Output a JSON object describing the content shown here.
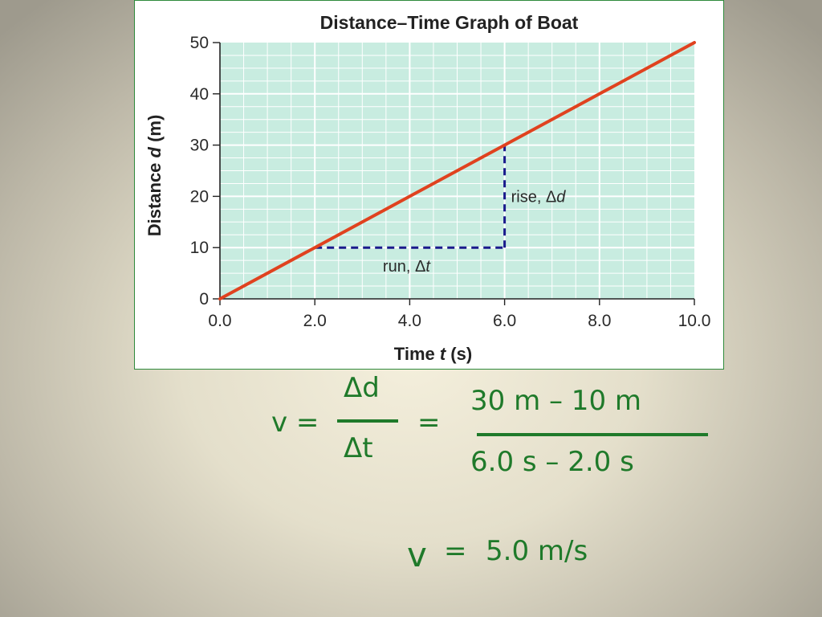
{
  "chart_data": {
    "type": "line",
    "title": "Distance–Time Graph of Boat",
    "xlabel": {
      "prefix": "Time ",
      "var": "t",
      "suffix": " (s)"
    },
    "ylabel": {
      "prefix": "Distance ",
      "var": "d",
      "suffix": " (m)"
    },
    "xlim": [
      0,
      10
    ],
    "ylim": [
      0,
      50
    ],
    "xticks": [
      0,
      2,
      4,
      6,
      8,
      10
    ],
    "xtick_labels": [
      "0.0",
      "2.0",
      "4.0",
      "6.0",
      "8.0",
      "10.0"
    ],
    "yticks": [
      0,
      10,
      20,
      30,
      40,
      50
    ],
    "ytick_labels": [
      "0",
      "10",
      "20",
      "30",
      "40",
      "50"
    ],
    "grid": true,
    "series": [
      {
        "x": [
          0,
          2,
          4,
          6,
          8,
          10
        ],
        "y": [
          0,
          10,
          20,
          30,
          40,
          50
        ],
        "color": "#e0421f"
      }
    ],
    "annotations": {
      "run": {
        "from": [
          2,
          10
        ],
        "to": [
          6,
          10
        ],
        "label_text": "run, Δ",
        "label_var": "t"
      },
      "rise": {
        "from": [
          6,
          10
        ],
        "to": [
          6,
          30
        ],
        "label_text": "rise, Δ",
        "label_var": "d"
      },
      "dash_color": "#1a1a8c"
    },
    "plot_background": "#c8ece0",
    "grid_color": "#ffffff"
  },
  "equations": {
    "v_label": "v =",
    "delta_d": "Δd",
    "delta_t": "Δt",
    "equals": "=",
    "numerator": "30 m – 10 m",
    "denominator": "6.0 s – 2.0 s",
    "result_v": "v",
    "result_equals": "=",
    "result_value": "5.0 m/s",
    "text_color": "#1f7a2a"
  }
}
